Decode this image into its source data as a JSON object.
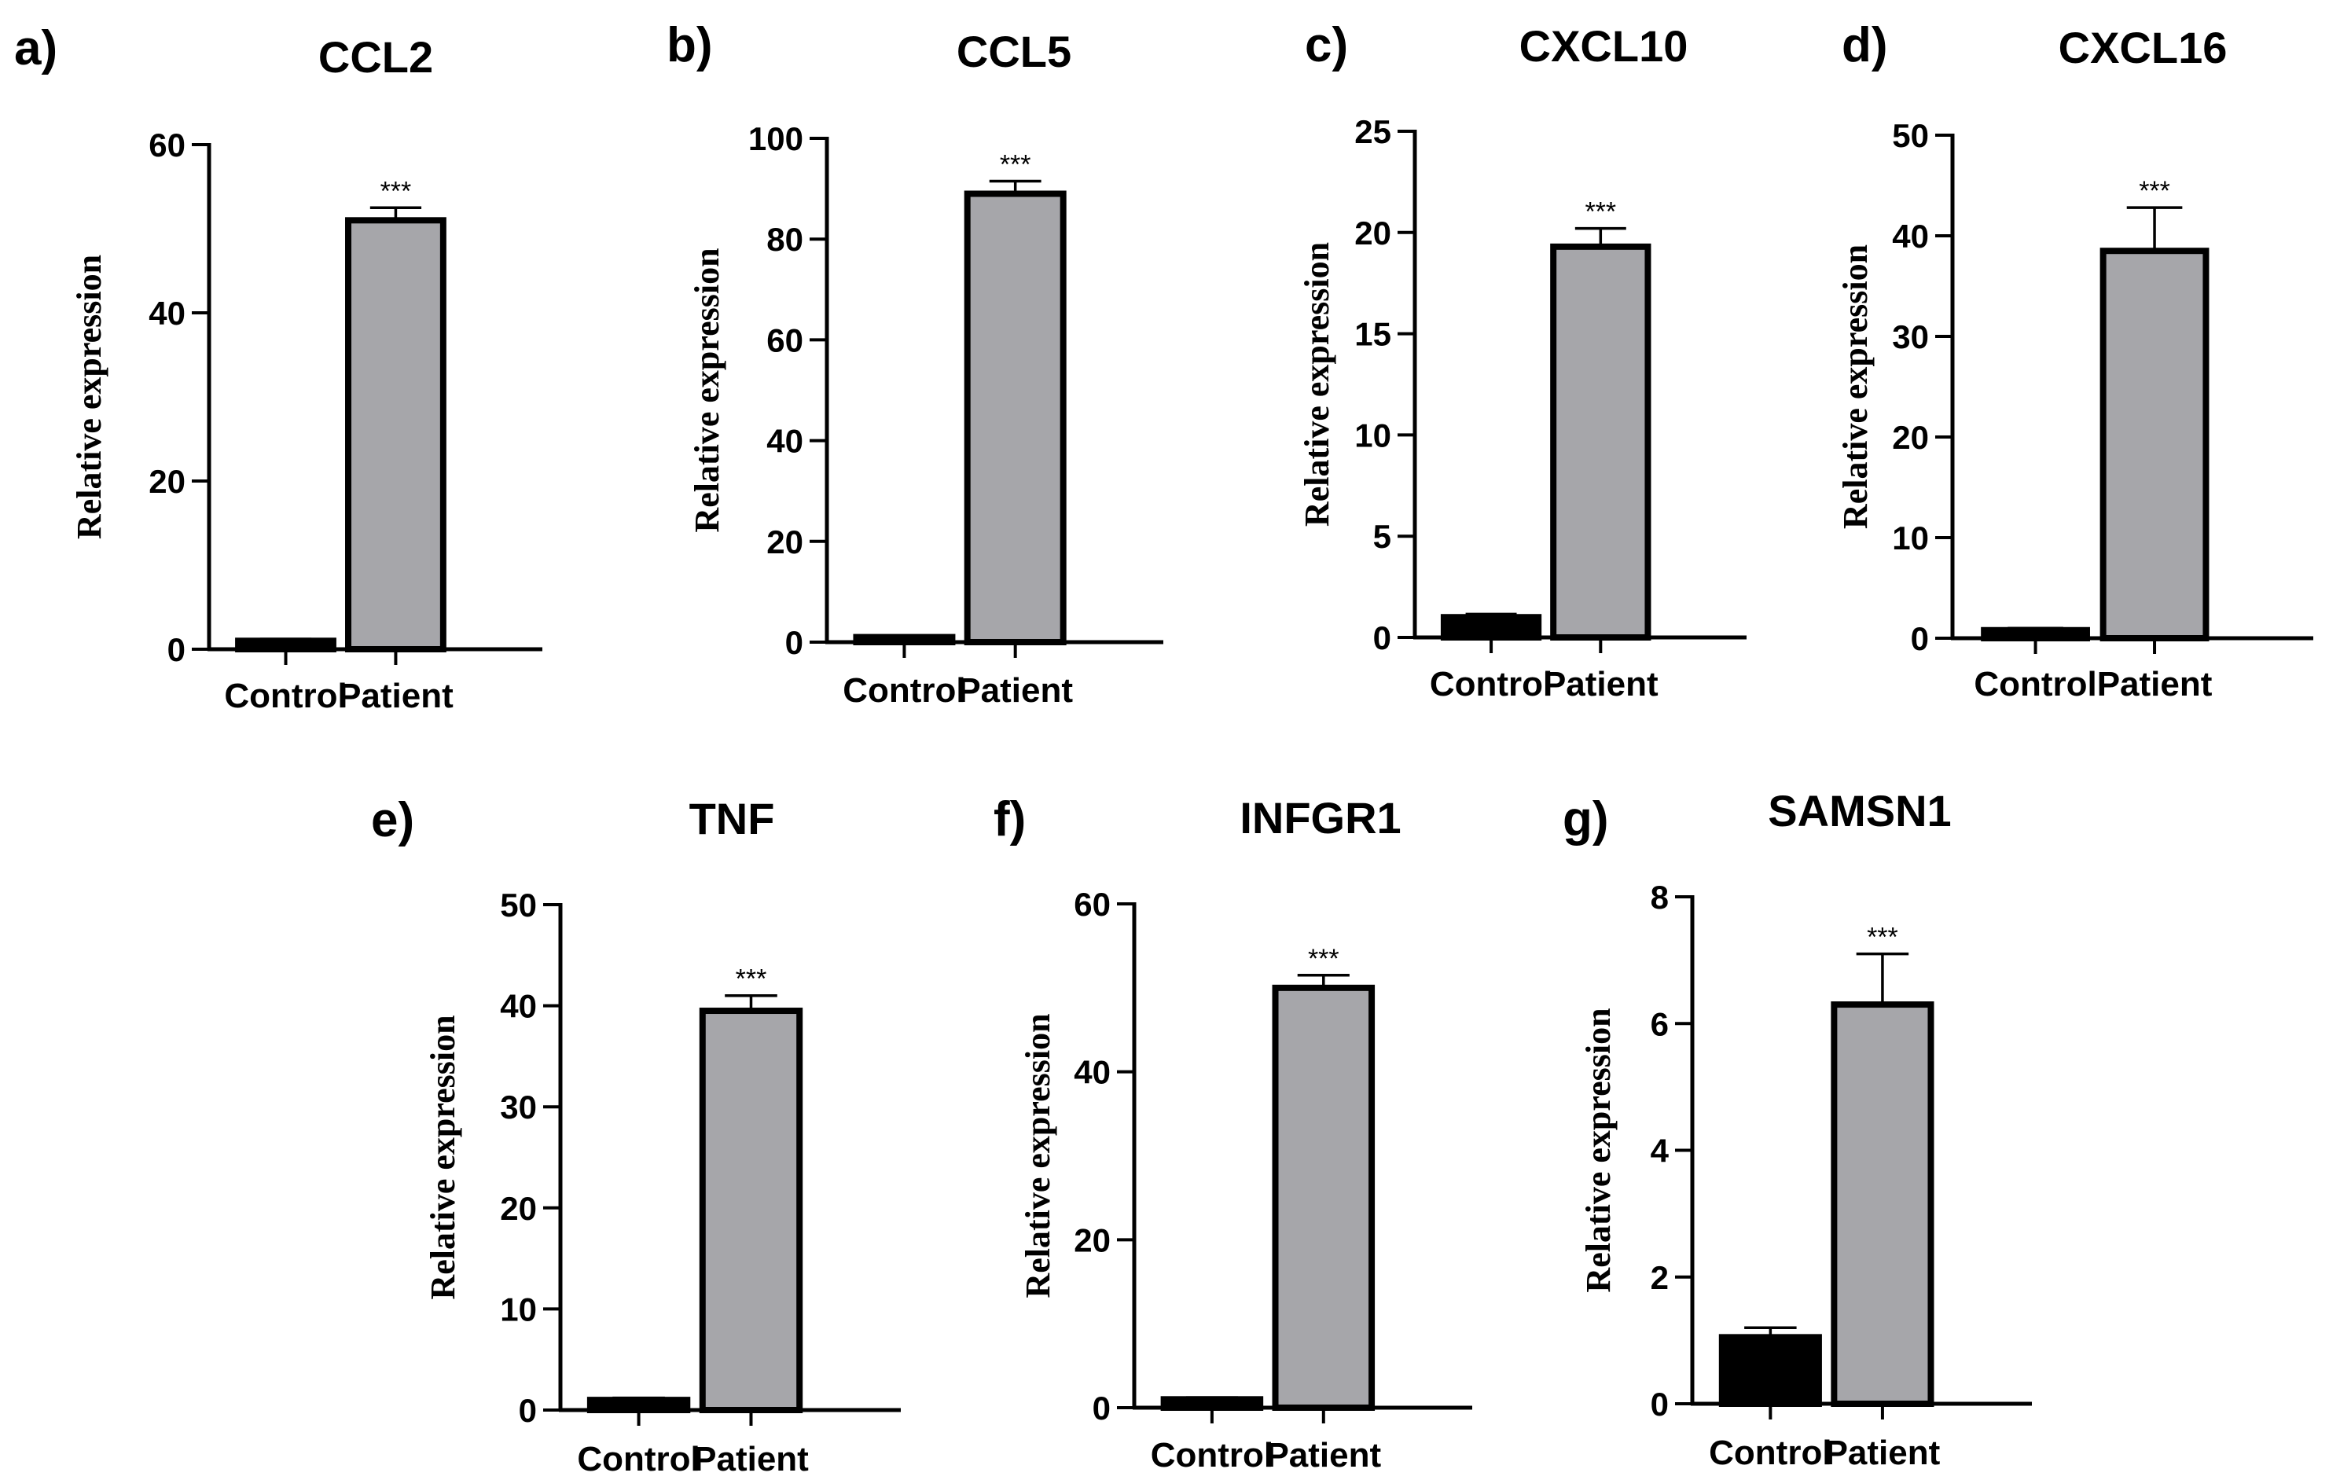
{
  "chart_data": [
    {
      "type": "bar",
      "panel": "a)",
      "title": "CCL2",
      "ylabel": "Relative expression",
      "categories": [
        "Control",
        "Patient"
      ],
      "values": [
        1.0,
        51.0
      ],
      "errors": [
        0.2,
        1.5
      ],
      "colors": [
        "#000000",
        "#a6a6aa"
      ],
      "significance": [
        "",
        "***"
      ],
      "ylim": [
        0,
        60
      ],
      "yticks": [
        0,
        20,
        40,
        60
      ]
    },
    {
      "type": "bar",
      "panel": "b)",
      "title": "CCL5",
      "ylabel": "Relative expression",
      "categories": [
        "Control",
        "Patient"
      ],
      "values": [
        1.0,
        89.0
      ],
      "errors": [
        0.2,
        2.5
      ],
      "colors": [
        "#000000",
        "#a6a6aa"
      ],
      "significance": [
        "",
        "***"
      ],
      "ylim": [
        0,
        100
      ],
      "yticks": [
        0,
        20,
        40,
        60,
        80,
        100
      ]
    },
    {
      "type": "bar",
      "panel": "c)",
      "title": "CXCL10",
      "ylabel": "Relative expression",
      "categories": [
        "Control",
        "Patient"
      ],
      "values": [
        1.0,
        19.3
      ],
      "errors": [
        0.15,
        0.9
      ],
      "colors": [
        "#000000",
        "#a6a6aa"
      ],
      "significance": [
        "",
        "***"
      ],
      "ylim": [
        0,
        25
      ],
      "yticks": [
        0,
        5,
        10,
        15,
        20,
        25
      ]
    },
    {
      "type": "bar",
      "panel": "d)",
      "title": "CXCL16",
      "ylabel": "Relative expression",
      "categories": [
        "Control",
        "Patient"
      ],
      "values": [
        0.8,
        38.5
      ],
      "errors": [
        0.2,
        4.3
      ],
      "colors": [
        "#000000",
        "#a6a6aa"
      ],
      "significance": [
        "",
        "***"
      ],
      "ylim": [
        0,
        50
      ],
      "yticks": [
        0,
        10,
        20,
        30,
        40,
        50
      ]
    },
    {
      "type": "bar",
      "panel": "e)",
      "title": "TNF",
      "ylabel": "Relative expression",
      "categories": [
        "Control",
        "Patient"
      ],
      "values": [
        1.0,
        39.5
      ],
      "errors": [
        0.2,
        1.5
      ],
      "colors": [
        "#000000",
        "#a6a6aa"
      ],
      "significance": [
        "",
        "***"
      ],
      "ylim": [
        0,
        50
      ],
      "yticks": [
        0,
        10,
        20,
        30,
        40,
        50
      ]
    },
    {
      "type": "bar",
      "panel": "f)",
      "title": "INFGR1",
      "ylabel": "Relative expression",
      "categories": [
        "Control",
        "Patient"
      ],
      "values": [
        1.0,
        50.0
      ],
      "errors": [
        0.2,
        1.5
      ],
      "colors": [
        "#000000",
        "#a6a6aa"
      ],
      "significance": [
        "",
        "***"
      ],
      "ylim": [
        0,
        60
      ],
      "yticks": [
        0,
        20,
        40,
        60
      ]
    },
    {
      "type": "bar",
      "panel": "g)",
      "title": "SAMSN1",
      "ylabel": "Relative expression",
      "categories": [
        "Control",
        "Patient"
      ],
      "values": [
        1.05,
        6.3
      ],
      "errors": [
        0.15,
        0.8
      ],
      "colors": [
        "#000000",
        "#a6a6aa"
      ],
      "significance": [
        "",
        "***"
      ],
      "ylim": [
        0,
        8
      ],
      "yticks": [
        0,
        2,
        4,
        6,
        8
      ]
    }
  ]
}
